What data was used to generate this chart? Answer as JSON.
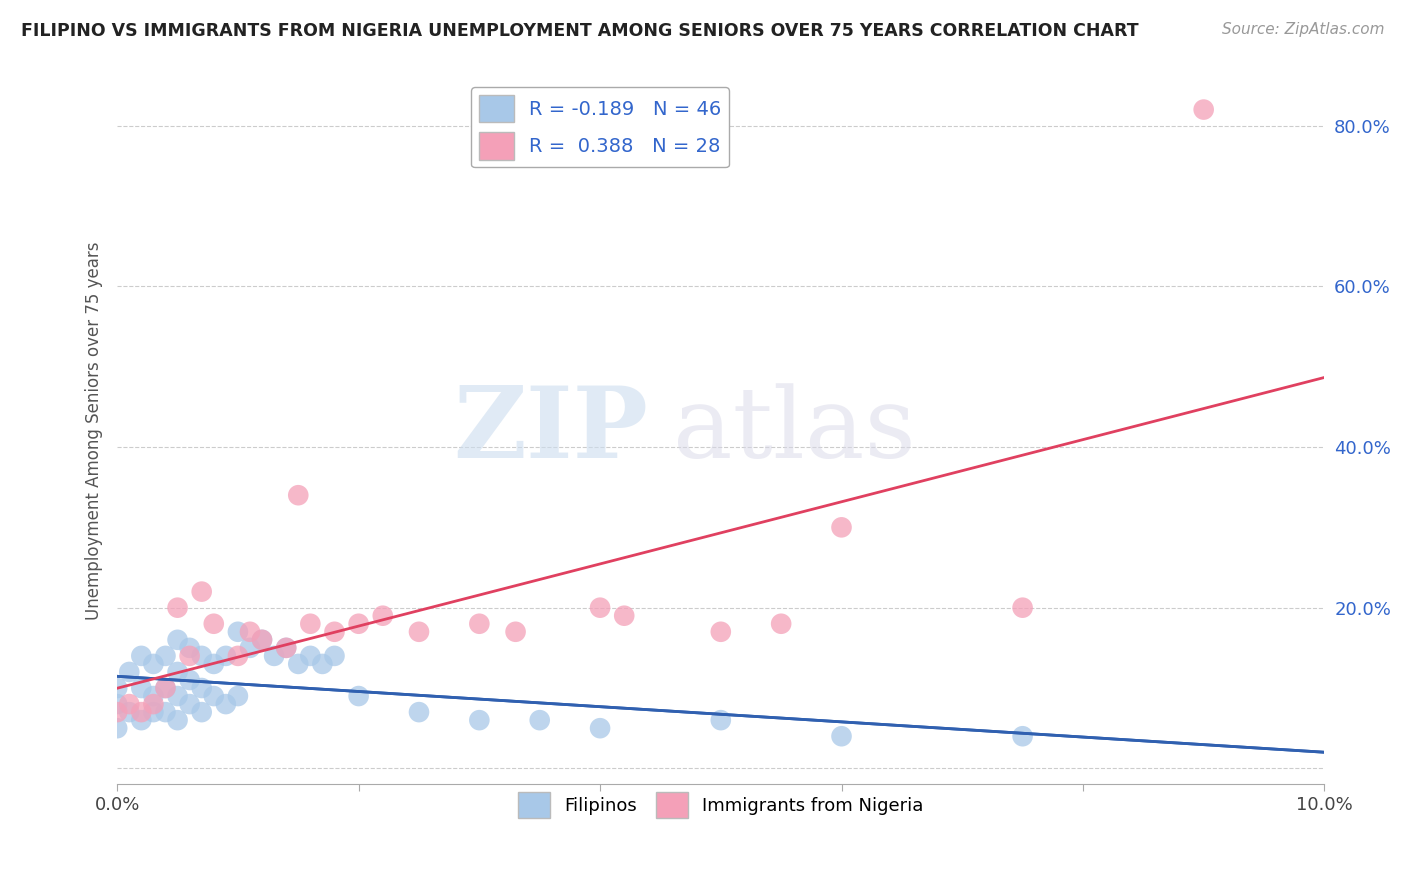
{
  "title": "FILIPINO VS IMMIGRANTS FROM NIGERIA UNEMPLOYMENT AMONG SENIORS OVER 75 YEARS CORRELATION CHART",
  "source": "Source: ZipAtlas.com",
  "ylabel": "Unemployment Among Seniors over 75 years",
  "xlim": [
    0.0,
    0.1
  ],
  "ylim": [
    -0.02,
    0.86
  ],
  "blue_R": -0.189,
  "blue_N": 46,
  "pink_R": 0.388,
  "pink_N": 28,
  "blue_color": "#a8c8e8",
  "pink_color": "#f4a0b8",
  "blue_line_color": "#3060b0",
  "pink_line_color": "#e04060",
  "legend_text_color": "#3366cc",
  "ytick_color": "#3366cc",
  "blue_x": [
    0.0,
    0.0,
    0.0,
    0.001,
    0.001,
    0.002,
    0.002,
    0.002,
    0.003,
    0.003,
    0.003,
    0.004,
    0.004,
    0.004,
    0.005,
    0.005,
    0.005,
    0.005,
    0.006,
    0.006,
    0.006,
    0.007,
    0.007,
    0.007,
    0.008,
    0.008,
    0.009,
    0.009,
    0.01,
    0.01,
    0.011,
    0.012,
    0.013,
    0.014,
    0.015,
    0.016,
    0.017,
    0.018,
    0.02,
    0.025,
    0.03,
    0.035,
    0.04,
    0.05,
    0.06,
    0.075
  ],
  "blue_y": [
    0.05,
    0.08,
    0.1,
    0.07,
    0.12,
    0.06,
    0.1,
    0.14,
    0.07,
    0.09,
    0.13,
    0.07,
    0.1,
    0.14,
    0.06,
    0.09,
    0.12,
    0.16,
    0.08,
    0.11,
    0.15,
    0.07,
    0.1,
    0.14,
    0.09,
    0.13,
    0.08,
    0.14,
    0.09,
    0.17,
    0.15,
    0.16,
    0.14,
    0.15,
    0.13,
    0.14,
    0.13,
    0.14,
    0.09,
    0.07,
    0.06,
    0.06,
    0.05,
    0.06,
    0.04,
    0.04
  ],
  "pink_x": [
    0.0,
    0.001,
    0.002,
    0.003,
    0.004,
    0.005,
    0.006,
    0.007,
    0.008,
    0.01,
    0.011,
    0.012,
    0.014,
    0.015,
    0.016,
    0.018,
    0.02,
    0.022,
    0.025,
    0.03,
    0.033,
    0.04,
    0.042,
    0.05,
    0.055,
    0.06,
    0.075,
    0.09
  ],
  "pink_y": [
    0.07,
    0.08,
    0.07,
    0.08,
    0.1,
    0.2,
    0.14,
    0.22,
    0.18,
    0.14,
    0.17,
    0.16,
    0.15,
    0.34,
    0.18,
    0.17,
    0.18,
    0.19,
    0.17,
    0.18,
    0.17,
    0.2,
    0.19,
    0.17,
    0.18,
    0.3,
    0.2,
    0.82
  ]
}
